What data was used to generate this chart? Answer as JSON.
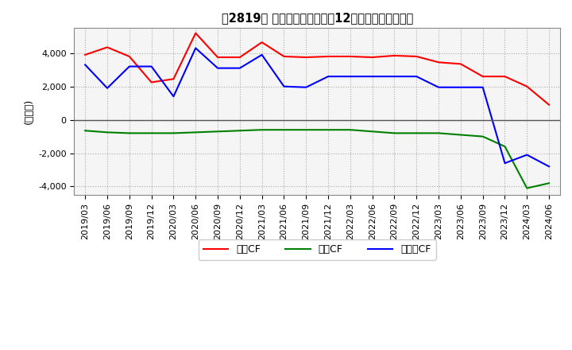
{
  "title_text": "【2819】 キャッシュフローの12か月移動合計の推移",
  "ylabel": "(百万円)",
  "ylim": [
    -4500,
    5500
  ],
  "yticks": [
    -4000,
    -2000,
    0,
    2000,
    4000
  ],
  "legend_labels": [
    "営業CF",
    "投資CF",
    "フリーCF"
  ],
  "line_colors": [
    "#ff0000",
    "#008000",
    "#0000ff"
  ],
  "background_color": "#ffffff",
  "plot_bg_color": "#f5f5f5",
  "dates": [
    "2019/03",
    "2019/06",
    "2019/09",
    "2019/12",
    "2020/03",
    "2020/06",
    "2020/09",
    "2020/12",
    "2021/03",
    "2021/06",
    "2021/09",
    "2021/12",
    "2022/03",
    "2022/06",
    "2022/09",
    "2022/12",
    "2023/03",
    "2023/06",
    "2023/09",
    "2023/12",
    "2024/03",
    "2024/06"
  ],
  "operating_cf": [
    3900,
    4350,
    3800,
    2250,
    2450,
    5200,
    3750,
    3750,
    4650,
    3800,
    3750,
    3800,
    3800,
    3750,
    3850,
    3800,
    3450,
    3350,
    2600,
    2600,
    2000,
    900
  ],
  "investing_cf": [
    -650,
    -750,
    -800,
    -800,
    -800,
    -750,
    -700,
    -650,
    -600,
    -600,
    -600,
    -600,
    -600,
    -700,
    -800,
    -800,
    -800,
    -900,
    -1000,
    -1600,
    -4100,
    -3800
  ],
  "free_cf": [
    3300,
    1900,
    3200,
    3200,
    1400,
    4300,
    3100,
    3100,
    3900,
    2000,
    1950,
    2600,
    2600,
    2600,
    2600,
    2600,
    1950,
    1950,
    1950,
    -2600,
    -2100,
    -2800
  ]
}
